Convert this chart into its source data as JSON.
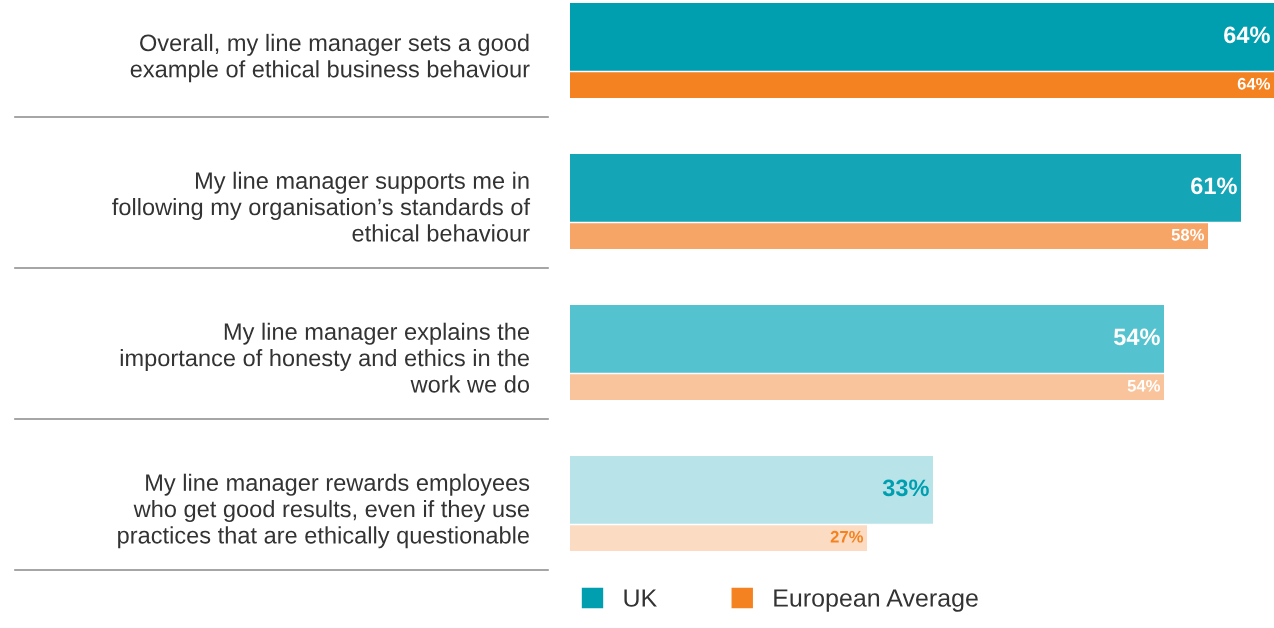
{
  "chart_data": {
    "type": "bar",
    "orientation": "horizontal",
    "categories": [
      "Overall, my line manager sets a good\nexample of ethical business behaviour",
      "My line manager supports me in\nfollowing my organisation’s standards of\nethical behaviour",
      "My line manager explains the\nimportance of honesty and ethics in the\nwork we do",
      "My line manager rewards employees\nwho get good results, even if they use\npractices that are ethically questionable"
    ],
    "series": [
      {
        "name": "UK",
        "color": "#009fb0",
        "colors": [
          "#009fb0",
          "#14a6b6",
          "#55c3cf",
          "#b8e4e9"
        ],
        "values": [
          64,
          61,
          54,
          33
        ],
        "value_labels": [
          "64%",
          "61%",
          "54%",
          "33%"
        ]
      },
      {
        "name": "European Average",
        "color": "#f58220",
        "colors": [
          "#f58220",
          "#f7a467",
          "#f9c49b",
          "#fbdcc3"
        ],
        "values": [
          64,
          58,
          54,
          27
        ],
        "value_labels": [
          "64%",
          "58%",
          "54%",
          "27%"
        ]
      }
    ],
    "legend": "bottom"
  }
}
